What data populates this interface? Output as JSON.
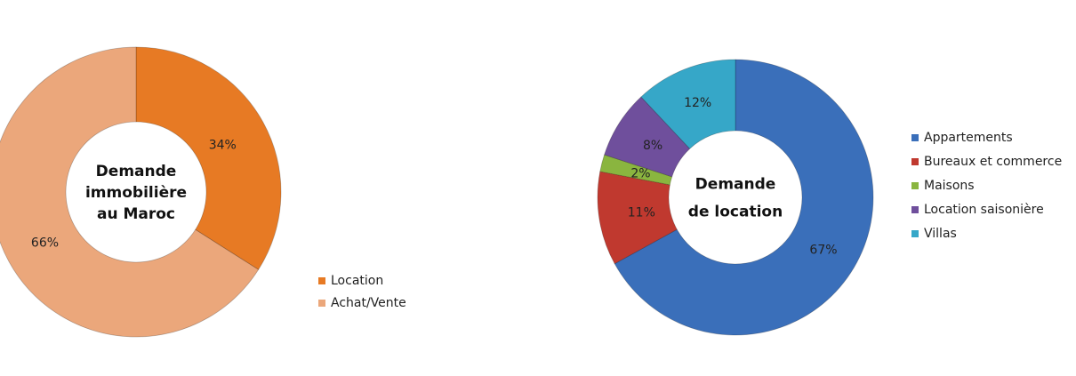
{
  "chart_data": [
    {
      "type": "pie",
      "subtype": "doughnut",
      "title_lines": [
        "Demande",
        "immobilière",
        "au Maroc"
      ],
      "categories": [
        "Location",
        "Achat/Vente"
      ],
      "values": [
        34,
        66
      ],
      "labels": [
        "34%",
        "66%"
      ],
      "colors": [
        "#e77a24",
        "#eba77b"
      ],
      "legend": "right"
    },
    {
      "type": "pie",
      "subtype": "doughnut",
      "title_lines": [
        "Demande",
        "de location"
      ],
      "categories": [
        "Appartements",
        "Bureaux et commerce",
        "Maisons",
        "Location saisonière",
        "Villas"
      ],
      "values": [
        67,
        11,
        2,
        8,
        12
      ],
      "labels": [
        "67%",
        "11%",
        "2%",
        "8%",
        "12%"
      ],
      "colors": [
        "#3a6fba",
        "#c0392f",
        "#8ab53f",
        "#6f4f9c",
        "#36a7c8"
      ],
      "legend": "right"
    }
  ]
}
